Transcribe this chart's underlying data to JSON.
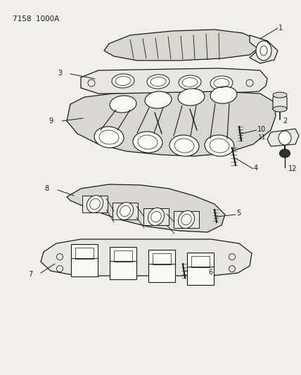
{
  "title_code": "7158  1000A",
  "bg": "#f0efeb",
  "lc": "#1a1a1a",
  "lc_light": "#555555",
  "fill_light": "#e8e7e2",
  "fill_mid": "#d8d7d2",
  "fill_dark": "#c8c7c2",
  "white": "#f8f8f5",
  "figsize": [
    4.28,
    5.33
  ],
  "dpi": 100
}
